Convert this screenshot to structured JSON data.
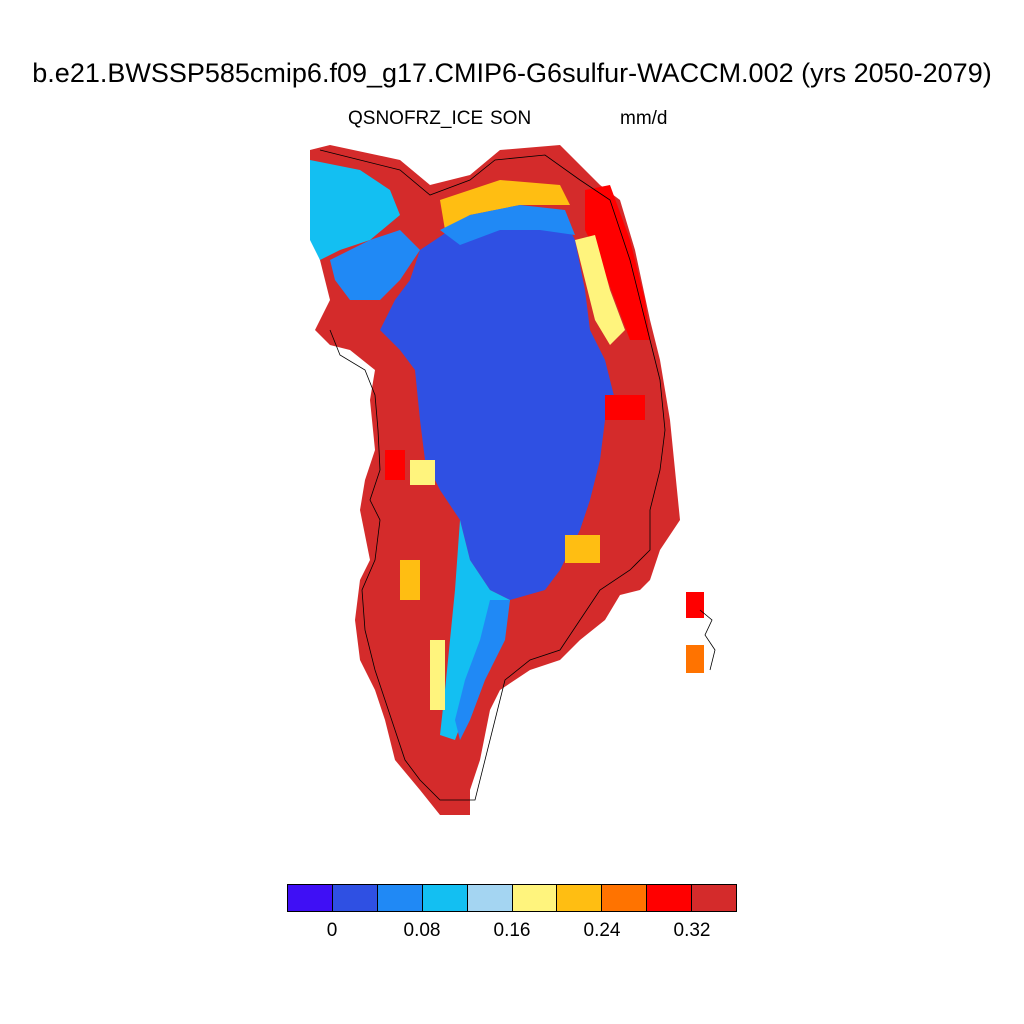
{
  "title": "b.e21.BWSSP585cmip6.f09_g17.CMIP6-G6sulfur-WACCM.002 (yrs 2050-2079)",
  "variable": "QSNOFRZ_ICE",
  "season": "SON",
  "units": "mm/d",
  "colorbar": {
    "colors": [
      "#3f0ff5",
      "#2f50e3",
      "#2089f5",
      "#13bff2",
      "#a4d5f2",
      "#fff47d",
      "#ffbe12",
      "#ff7300",
      "#ff0000",
      "#d42b2b"
    ],
    "tick_labels": [
      "0",
      "0.08",
      "0.16",
      "0.24",
      "0.32"
    ],
    "levels": [
      0,
      0.04,
      0.08,
      0.12,
      0.16,
      0.2,
      0.24,
      0.28,
      0.32,
      0.36
    ]
  },
  "map": {
    "region": "Greenland",
    "interior_value_class": 1,
    "coastal_value_class": 9
  }
}
